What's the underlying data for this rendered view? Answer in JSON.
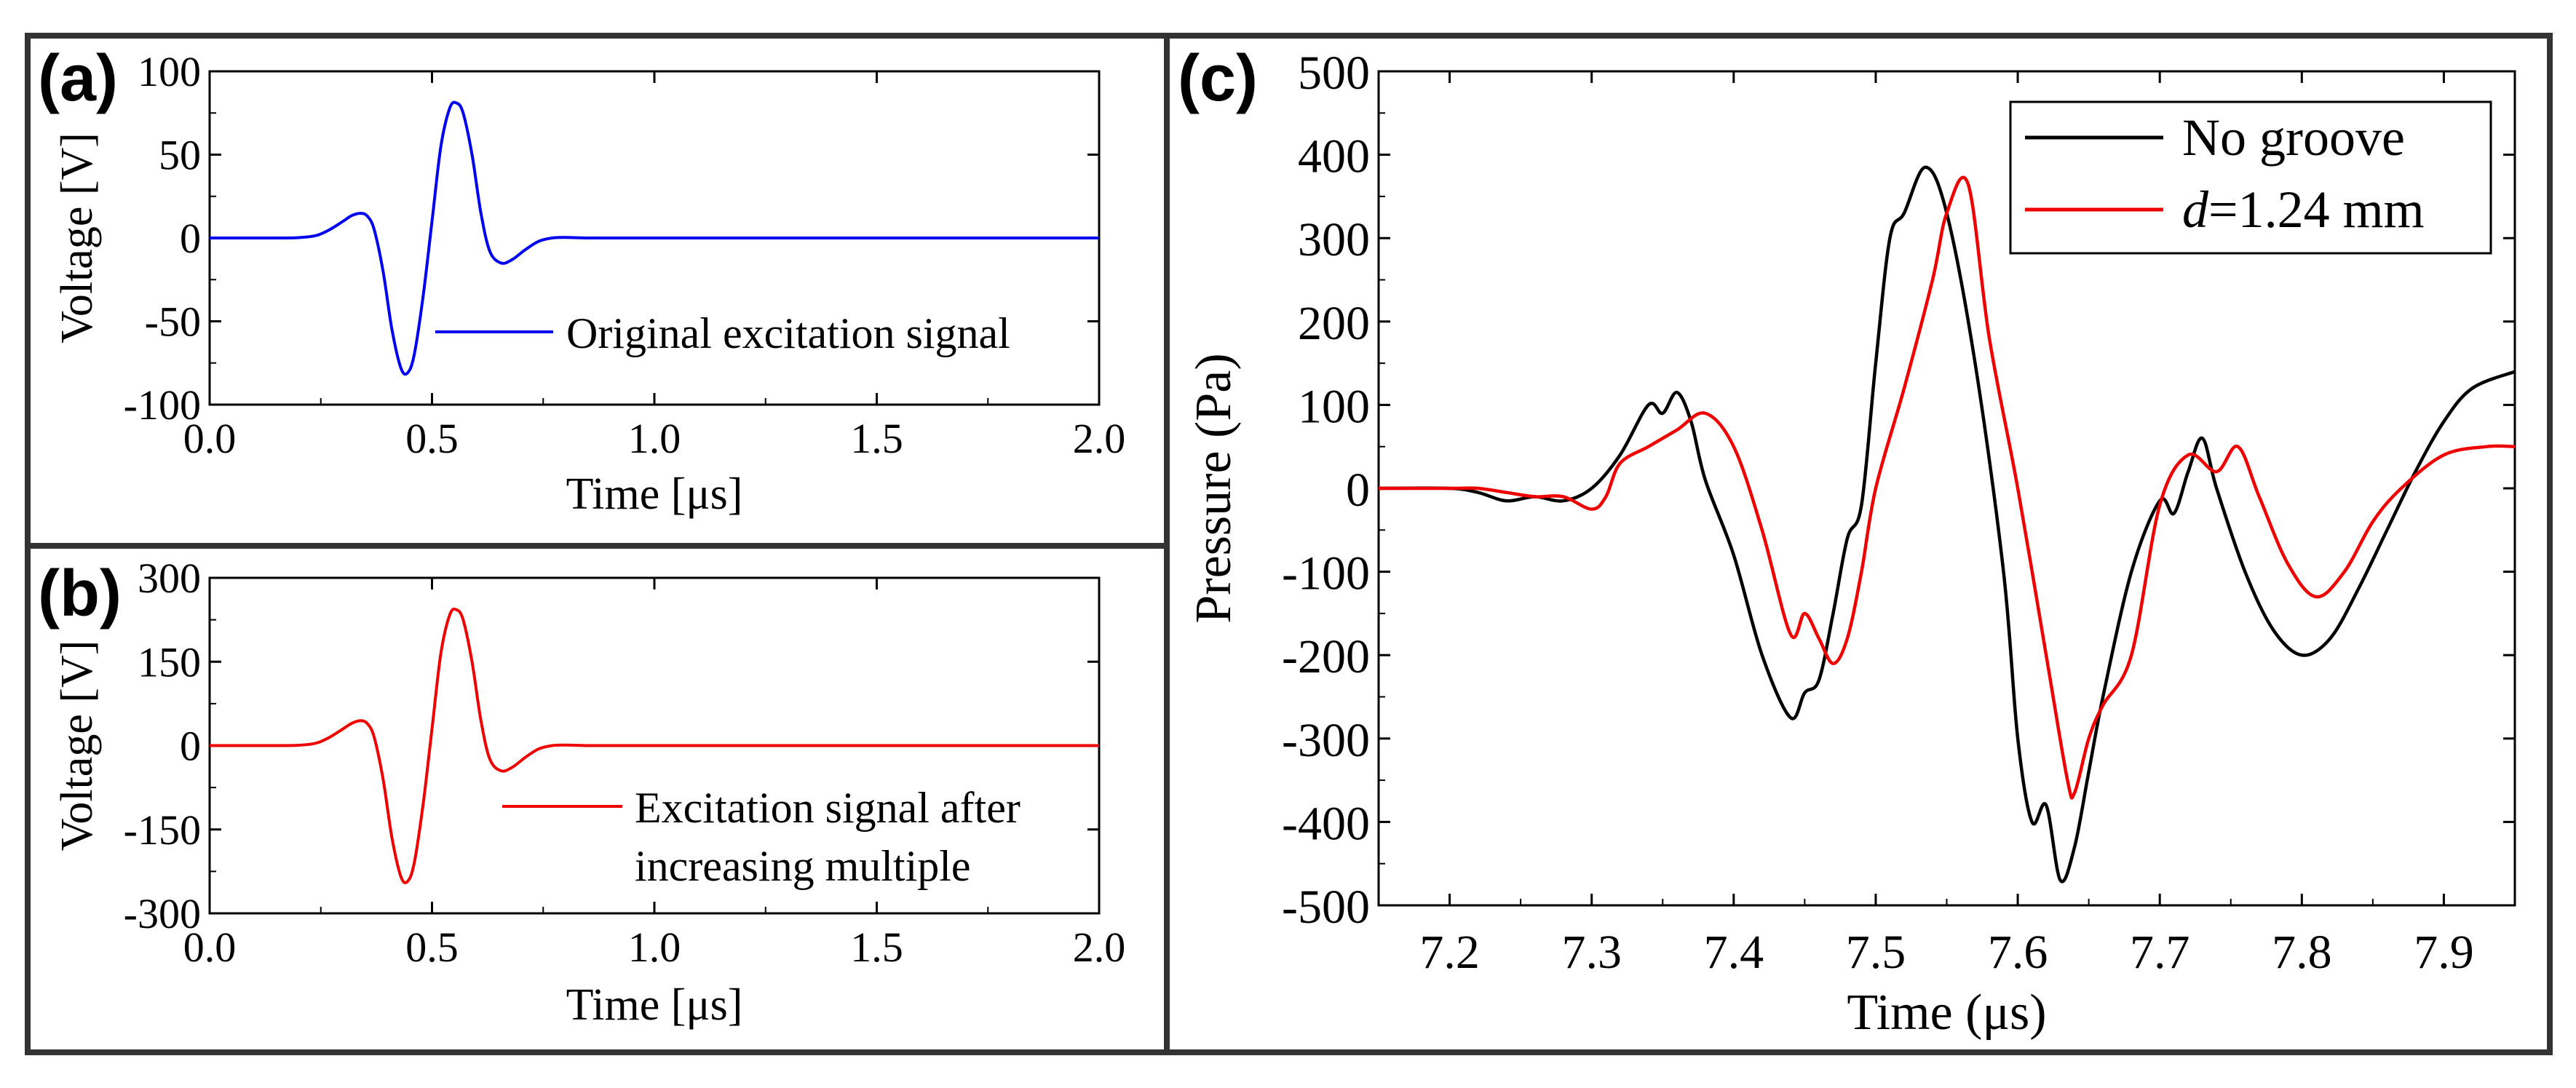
{
  "chart_data": [
    {
      "panel": "(a)",
      "type": "line",
      "xlabel": "Time [μs]",
      "ylabel": "Voltage [V]",
      "xlim": [
        0.0,
        2.0
      ],
      "ylim": [
        -100,
        100
      ],
      "xticks": [
        "0.0",
        "0.5",
        "1.0",
        "1.5",
        "2.0"
      ],
      "yticks": [
        "100",
        "50",
        "0",
        "-50",
        "-100"
      ],
      "legend": [
        "Original excitation signal"
      ],
      "series": [
        {
          "name": "Original excitation signal",
          "color": "#0000ee",
          "x": [
            0,
            0.05,
            0.1,
            0.15,
            0.2,
            0.24,
            0.27,
            0.3,
            0.32,
            0.34,
            0.355,
            0.37,
            0.39,
            0.41,
            0.43,
            0.445,
            0.46,
            0.48,
            0.5,
            0.52,
            0.54,
            0.555,
            0.57,
            0.59,
            0.61,
            0.63,
            0.655,
            0.68,
            0.71,
            0.74,
            0.77,
            0.8,
            0.85,
            0.9,
            1.0,
            1.2,
            1.5,
            1.8,
            2.0
          ],
          "y": [
            0,
            0,
            0,
            0,
            0.2,
            1.5,
            5,
            10,
            13.5,
            14.8,
            13,
            5,
            -20,
            -55,
            -78,
            -81,
            -70,
            -35,
            10,
            55,
            78,
            81,
            75,
            50,
            15,
            -8,
            -15,
            -13,
            -7,
            -2,
            0,
            0.3,
            0,
            0,
            0,
            0,
            0,
            0,
            0
          ]
        }
      ]
    },
    {
      "panel": "(b)",
      "type": "line",
      "xlabel": "Time [μs]",
      "ylabel": "Voltage [V]",
      "xlim": [
        0.0,
        2.0
      ],
      "ylim": [
        -300,
        300
      ],
      "xticks": [
        "0.0",
        "0.5",
        "1.0",
        "1.5",
        "2.0"
      ],
      "yticks": [
        "300",
        "150",
        "0",
        "-150",
        "-300"
      ],
      "legend": [
        "Excitation signal after",
        "increasing multiple"
      ],
      "series": [
        {
          "name": "Excitation signal after increasing multiple",
          "color": "#ee0000",
          "x": [
            0,
            0.05,
            0.1,
            0.15,
            0.2,
            0.24,
            0.27,
            0.3,
            0.32,
            0.34,
            0.355,
            0.37,
            0.39,
            0.41,
            0.43,
            0.445,
            0.46,
            0.48,
            0.5,
            0.52,
            0.54,
            0.555,
            0.57,
            0.59,
            0.61,
            0.63,
            0.655,
            0.68,
            0.71,
            0.74,
            0.77,
            0.8,
            0.85,
            0.9,
            1.0,
            1.2,
            1.5,
            1.8,
            2.0
          ],
          "y": [
            0,
            0,
            0,
            0,
            0.6,
            4.5,
            15,
            30,
            40,
            44.5,
            39,
            15,
            -60,
            -165,
            -234,
            -243,
            -210,
            -105,
            30,
            165,
            234,
            243,
            225,
            150,
            45,
            -24,
            -45,
            -39,
            -21,
            -6,
            0,
            1,
            0,
            0,
            0,
            0,
            0,
            0,
            0
          ]
        }
      ]
    },
    {
      "panel": "(c)",
      "type": "line",
      "xlabel": "Time (μs)",
      "ylabel": "Pressure (Pa)",
      "xlim": [
        7.15,
        7.95
      ],
      "ylim": [
        -500,
        500
      ],
      "xticks": [
        "7.2",
        "7.3",
        "7.4",
        "7.5",
        "7.6",
        "7.7",
        "7.8",
        "7.9"
      ],
      "yticks": [
        "500",
        "400",
        "300",
        "200",
        "100",
        "0",
        "-100",
        "-200",
        "-300",
        "-400",
        "-500"
      ],
      "legend": [
        {
          "prefix": "",
          "italic": "",
          "suffix": "No groove"
        },
        {
          "prefix": "",
          "italic": "d",
          "suffix": "=1.24 mm"
        }
      ],
      "series": [
        {
          "name": "No groove",
          "color": "#000000",
          "x": [
            7.15,
            7.2,
            7.22,
            7.24,
            7.26,
            7.28,
            7.3,
            7.32,
            7.34,
            7.35,
            7.36,
            7.37,
            7.38,
            7.4,
            7.42,
            7.44,
            7.45,
            7.46,
            7.47,
            7.48,
            7.49,
            7.5,
            7.51,
            7.52,
            7.535,
            7.55,
            7.57,
            7.59,
            7.6,
            7.61,
            7.62,
            7.63,
            7.64,
            7.65,
            7.66,
            7.68,
            7.7,
            7.71,
            7.72,
            7.73,
            7.74,
            7.76,
            7.78,
            7.8,
            7.82,
            7.84,
            7.86,
            7.88,
            7.9,
            7.92,
            7.95
          ],
          "y": [
            0,
            0,
            -5,
            -15,
            -10,
            -15,
            0,
            40,
            100,
            90,
            115,
            80,
            10,
            -80,
            -200,
            -275,
            -245,
            -230,
            -150,
            -60,
            -20,
            150,
            300,
            330,
            385,
            330,
            150,
            -100,
            -300,
            -400,
            -380,
            -470,
            -430,
            -340,
            -250,
            -100,
            -15,
            -30,
            20,
            60,
            0,
            -100,
            -170,
            -200,
            -180,
            -120,
            -50,
            20,
            80,
            120,
            140
          ]
        },
        {
          "name": "d=1.24 mm",
          "color": "#ee0000",
          "x": [
            7.15,
            7.2,
            7.22,
            7.24,
            7.26,
            7.28,
            7.3,
            7.31,
            7.32,
            7.34,
            7.36,
            7.38,
            7.4,
            7.42,
            7.44,
            7.45,
            7.46,
            7.47,
            7.48,
            7.49,
            7.5,
            7.52,
            7.54,
            7.55,
            7.565,
            7.58,
            7.6,
            7.62,
            7.635,
            7.64,
            7.65,
            7.66,
            7.68,
            7.7,
            7.72,
            7.74,
            7.755,
            7.77,
            7.79,
            7.81,
            7.83,
            7.85,
            7.87,
            7.9,
            7.93,
            7.95
          ],
          "y": [
            0,
            0,
            0,
            -5,
            -10,
            -10,
            -25,
            -10,
            30,
            50,
            70,
            90,
            50,
            -50,
            -175,
            -150,
            -180,
            -210,
            -180,
            -100,
            0,
            120,
            250,
            330,
            365,
            180,
            0,
            -200,
            -350,
            -365,
            -300,
            -260,
            -200,
            -20,
            40,
            20,
            50,
            -10,
            -90,
            -130,
            -100,
            -40,
            0,
            40,
            50,
            50
          ]
        }
      ]
    }
  ]
}
